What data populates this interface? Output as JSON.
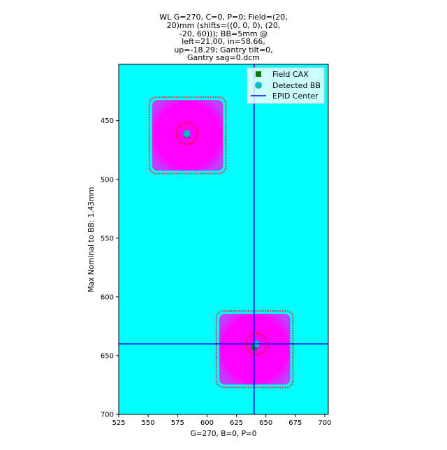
{
  "chart_data": {
    "type": "image-overlay",
    "title_lines": [
      "WL G=270, C=0, P=0; Field=(20,",
      "20)mm (shifts=((0, 0, 0), (20,",
      "-20, 60))); BB=5mm @",
      "left=21.00, in=58.66,",
      "up=-18.29; Gantry tilt=0,",
      "Gantry sag=0.dcm"
    ],
    "xlabel": "G=270, B=0, P=0",
    "ylabel": "Max Nominal to BB: 1.43mm",
    "xlim": [
      525,
      703
    ],
    "ylim": [
      700,
      402
    ],
    "y_inverted": true,
    "xticks": [
      525,
      550,
      575,
      600,
      625,
      650,
      675,
      700
    ],
    "yticks": [
      450,
      500,
      550,
      600,
      650,
      700
    ],
    "background_color": "#00ffff",
    "field_color": "#ff00ff",
    "fields": [
      {
        "x_range": [
          551,
          616
        ],
        "y_range": [
          430,
          495
        ],
        "cax": [
          583,
          462
        ],
        "bb": [
          583,
          461
        ],
        "bb_circle_radius": 9
      },
      {
        "x_range": [
          608,
          673
        ],
        "y_range": [
          612,
          677
        ],
        "cax": [
          640,
          643
        ],
        "bb": [
          642,
          640
        ],
        "bb_circle_radius": 9
      }
    ],
    "epid_center": [
      640,
      640
    ],
    "legend": {
      "position": "upper right",
      "entries": [
        {
          "label": "Field CAX",
          "marker": "square",
          "color": "#008000"
        },
        {
          "label": "Detected BB",
          "marker": "circle",
          "color": "#00bfbf"
        },
        {
          "label": "EPID Center",
          "marker": "line",
          "color": "#0000ff"
        }
      ]
    }
  }
}
